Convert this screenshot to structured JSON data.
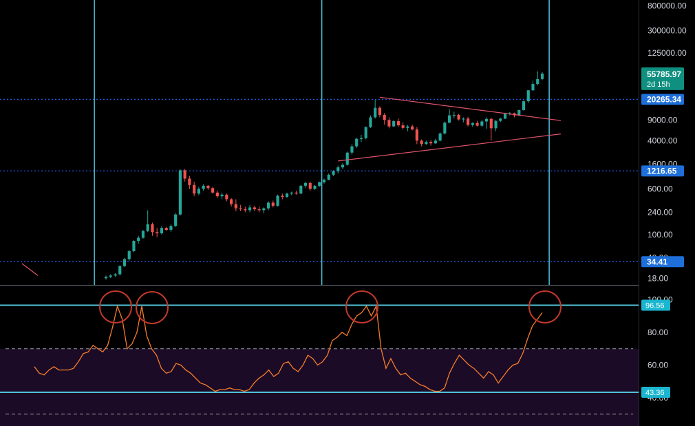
{
  "colors": {
    "background": "#000000",
    "bull": "#26a69a",
    "bear": "#ef5350",
    "cyan": "#4fc3d9",
    "level_line": "#2962ff",
    "tag_blue": "#1e6fd9",
    "tag_green": "#0f8f7f",
    "tag_cyan": "#1ab6cf",
    "rsi_line": "#f57c2b",
    "rsi_band": "#1c0b26",
    "circle": "#c0392b",
    "trendline": "#e0546a",
    "axis_text": "#d1d4dc"
  },
  "chart_data": [
    {
      "type": "candlestick",
      "scale": "log",
      "ylim": [
        15,
        900000
      ],
      "y_ticks": [
        "800000.00",
        "300000.00",
        "125000.00",
        "20265.34",
        "9000.00",
        "4000.00",
        "1600.00",
        "600.00",
        "240.00",
        "100.00",
        "40.00",
        "18.00"
      ],
      "y_tick_values": [
        800000,
        300000,
        125000,
        20265.34,
        9000,
        4000,
        1600,
        600,
        240,
        100,
        40,
        18
      ],
      "price_tags": [
        {
          "label": "55785.97",
          "sublabel": "2d 15h",
          "value": 55785.97,
          "color": "tag_green"
        },
        {
          "label": "20265.34",
          "value": 20265.34,
          "color": "tag_blue"
        },
        {
          "label": "1216.65",
          "value": 1216.65,
          "color": "tag_blue"
        },
        {
          "label": "34.41",
          "value": 34.41,
          "color": "tag_blue"
        }
      ],
      "horizontal_levels": [
        20265.34,
        1216.65,
        34.41
      ],
      "vertical_markers": [
        "marker_1",
        "marker_2",
        "marker_3"
      ],
      "triangle_upper_line": {
        "start": 22000,
        "end": 8800
      },
      "triangle_lower_line": {
        "start": 1800,
        "end": 5200
      },
      "early_trend_line": {
        "start": 32,
        "end": 20
      },
      "candles": [
        [
          18,
          20,
          17,
          19
        ],
        [
          19,
          21,
          18,
          20
        ],
        [
          20,
          22,
          19,
          21
        ],
        [
          21,
          30,
          20,
          29
        ],
        [
          29,
          40,
          28,
          38
        ],
        [
          38,
          55,
          36,
          52
        ],
        [
          52,
          80,
          50,
          78
        ],
        [
          78,
          95,
          70,
          88
        ],
        [
          88,
          120,
          85,
          115
        ],
        [
          115,
          260,
          110,
          150
        ],
        [
          150,
          160,
          95,
          110
        ],
        [
          110,
          130,
          90,
          105
        ],
        [
          105,
          140,
          100,
          130
        ],
        [
          130,
          135,
          115,
          120
        ],
        [
          120,
          150,
          110,
          140
        ],
        [
          140,
          230,
          135,
          220
        ],
        [
          220,
          1300,
          210,
          1250
        ],
        [
          1250,
          1320,
          800,
          900
        ],
        [
          900,
          1000,
          600,
          700
        ],
        [
          700,
          800,
          450,
          500
        ],
        [
          500,
          650,
          470,
          600
        ],
        [
          600,
          720,
          560,
          680
        ],
        [
          680,
          700,
          580,
          620
        ],
        [
          620,
          650,
          500,
          520
        ],
        [
          520,
          560,
          420,
          450
        ],
        [
          450,
          520,
          400,
          480
        ],
        [
          480,
          500,
          370,
          400
        ],
        [
          400,
          420,
          300,
          330
        ],
        [
          330,
          400,
          250,
          280
        ],
        [
          280,
          320,
          250,
          270
        ],
        [
          270,
          300,
          240,
          260
        ],
        [
          260,
          320,
          240,
          290
        ],
        [
          290,
          310,
          250,
          270
        ],
        [
          270,
          300,
          240,
          260
        ],
        [
          260,
          290,
          230,
          280
        ],
        [
          280,
          370,
          260,
          350
        ],
        [
          350,
          380,
          290,
          310
        ],
        [
          310,
          480,
          300,
          460
        ],
        [
          460,
          500,
          400,
          440
        ],
        [
          440,
          520,
          420,
          500
        ],
        [
          500,
          540,
          470,
          520
        ],
        [
          520,
          560,
          480,
          500
        ],
        [
          500,
          700,
          490,
          680
        ],
        [
          680,
          800,
          620,
          760
        ],
        [
          760,
          800,
          560,
          600
        ],
        [
          600,
          700,
          580,
          680
        ],
        [
          680,
          800,
          650,
          780
        ],
        [
          780,
          900,
          740,
          860
        ],
        [
          860,
          1100,
          840,
          1050
        ],
        [
          1050,
          1250,
          1000,
          1200
        ],
        [
          1200,
          1500,
          1100,
          1400
        ],
        [
          1400,
          1650,
          1300,
          1550
        ],
        [
          1550,
          2600,
          1500,
          2500
        ],
        [
          2500,
          3500,
          2300,
          3200
        ],
        [
          3200,
          4500,
          3000,
          4300
        ],
        [
          4300,
          5000,
          3800,
          4400
        ],
        [
          4400,
          7000,
          4200,
          6800
        ],
        [
          6800,
          10800,
          6600,
          10000
        ],
        [
          10000,
          20000,
          9500,
          14500
        ],
        [
          14500,
          15500,
          10000,
          11000
        ],
        [
          11000,
          11800,
          7500,
          9000
        ],
        [
          9000,
          10000,
          6500,
          7000
        ],
        [
          7000,
          9000,
          6800,
          8600
        ],
        [
          8600,
          9500,
          6900,
          7300
        ],
        [
          7300,
          8200,
          6200,
          6600
        ],
        [
          6600,
          7400,
          5800,
          7000
        ],
        [
          7000,
          7500,
          6000,
          6200
        ],
        [
          6200,
          6800,
          3500,
          4000
        ],
        [
          4000,
          4200,
          3200,
          3500
        ],
        [
          3500,
          4000,
          3400,
          3800
        ],
        [
          3800,
          4100,
          3300,
          3600
        ],
        [
          3600,
          4300,
          3500,
          4000
        ],
        [
          4000,
          5500,
          3900,
          5300
        ],
        [
          5300,
          8500,
          5100,
          8100
        ],
        [
          8100,
          13800,
          7900,
          10800
        ],
        [
          10800,
          12500,
          9600,
          11000
        ],
        [
          11000,
          11500,
          8800,
          9200
        ],
        [
          9200,
          10000,
          8200,
          9500
        ],
        [
          9500,
          10200,
          7000,
          7400
        ],
        [
          7400,
          8200,
          6900,
          8000
        ],
        [
          8000,
          8700,
          7000,
          7200
        ],
        [
          7200,
          9000,
          6800,
          8500
        ],
        [
          8500,
          10000,
          6400,
          9400
        ],
        [
          9400,
          9800,
          4000,
          6500
        ],
        [
          6500,
          9000,
          5800,
          8700
        ],
        [
          8700,
          9800,
          8300,
          9500
        ],
        [
          9500,
          12000,
          9300,
          11500
        ],
        [
          11500,
          12300,
          10800,
          11700
        ],
        [
          11700,
          12000,
          10000,
          10800
        ],
        [
          10800,
          13500,
          10500,
          13300
        ],
        [
          13300,
          19500,
          13000,
          18800
        ],
        [
          18800,
          29000,
          17600,
          28900
        ],
        [
          28900,
          42000,
          28000,
          37000
        ],
        [
          37000,
          61000,
          35000,
          45000
        ],
        [
          45000,
          59000,
          43000,
          55785.97
        ]
      ]
    },
    {
      "type": "line",
      "indicator": "RSI",
      "ylim": [
        40,
        101
      ],
      "y_ticks": [
        "100.00",
        "80.00",
        "60.00",
        "40.00"
      ],
      "y_tick_values": [
        100,
        80,
        60,
        40
      ],
      "levels": [
        {
          "label": "96.56",
          "value": 96.56
        },
        {
          "label": "43.36",
          "value": 43.36
        }
      ],
      "band": [
        70,
        30
      ],
      "circled_peaks": [
        "peak_1",
        "peak_2",
        "peak_3",
        "peak_4"
      ],
      "values": [
        59,
        55,
        54,
        57,
        59,
        57,
        57,
        57,
        58,
        62,
        67,
        68,
        72,
        70,
        68,
        72,
        83,
        96,
        88,
        70,
        73,
        80,
        96,
        78,
        70,
        66,
        58,
        55,
        56,
        61,
        60,
        57,
        55,
        52,
        49,
        48,
        46,
        44,
        45,
        45,
        46,
        45,
        45,
        44,
        45,
        49,
        52,
        54,
        57,
        53,
        55,
        61,
        62,
        58,
        56,
        60,
        66,
        64,
        60,
        62,
        66,
        75,
        77,
        80,
        78,
        85,
        90,
        92,
        96,
        90,
        96,
        70,
        58,
        64,
        58,
        54,
        55,
        52,
        50,
        48,
        47,
        45,
        44,
        44,
        46,
        55,
        61,
        66,
        63,
        60,
        58,
        55,
        52,
        56,
        54,
        49,
        53,
        57,
        60,
        61,
        67,
        76,
        84,
        88,
        92
      ]
    }
  ]
}
